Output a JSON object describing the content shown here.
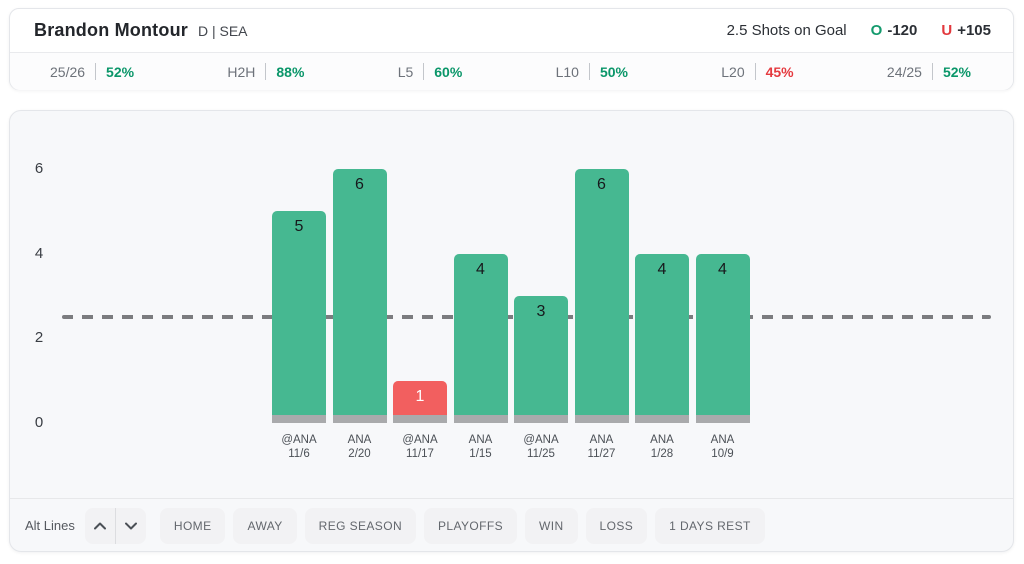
{
  "header": {
    "player_name": "Brandon Montour",
    "player_meta": "D | SEA",
    "market": "2.5 Shots on Goal",
    "over_label": "O",
    "over_odds": "-120",
    "under_label": "U",
    "under_odds": "+105"
  },
  "stats": [
    {
      "label": "25/26",
      "value": "52%",
      "status": "positive"
    },
    {
      "label": "H2H",
      "value": "88%",
      "status": "positive"
    },
    {
      "label": "L5",
      "value": "60%",
      "status": "positive"
    },
    {
      "label": "L10",
      "value": "50%",
      "status": "positive"
    },
    {
      "label": "L20",
      "value": "45%",
      "status": "negative"
    },
    {
      "label": "24/25",
      "value": "52%",
      "status": "positive"
    }
  ],
  "chart_data": {
    "type": "bar",
    "title": "",
    "xlabel": "",
    "ylabel": "",
    "categories": [
      "@ANA 11/6",
      "ANA 2/20",
      "@ANA 11/17",
      "ANA 1/15",
      "@ANA 11/25",
      "ANA 11/27",
      "ANA 1/28",
      "ANA 10/9"
    ],
    "values": [
      5,
      6,
      1,
      4,
      3,
      6,
      4,
      4
    ],
    "betting_line": 2.5,
    "ylim": [
      0,
      6.5
    ],
    "yticks": [
      0,
      2,
      4,
      6
    ],
    "grid": false,
    "legend": "none",
    "bar_value_labels": true
  },
  "colors": {
    "positive": "#0a9669",
    "negative": "#e53a3f",
    "bar_over": "#46b891",
    "bar_under": "#f25f5f",
    "bar_base": "#a9aaac",
    "line_dash": "#7b7c7f"
  },
  "controls": {
    "alt_lines_label": "Alt Lines",
    "filters": [
      "HOME",
      "AWAY",
      "REG SEASON",
      "PLAYOFFS",
      "WIN",
      "LOSS",
      "1 DAYS REST"
    ]
  }
}
